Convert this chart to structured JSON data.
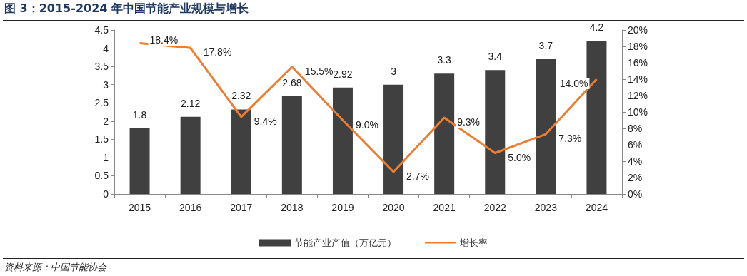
{
  "chart_data": {
    "type": "bar",
    "title": "图 3：2015-2024 年中国节能产业规模与增长",
    "annotations": [
      "资料来源：中国节能协会"
    ],
    "categories": [
      "2015",
      "2016",
      "2017",
      "2018",
      "2019",
      "2020",
      "2021",
      "2022",
      "2023",
      "2024"
    ],
    "series": [
      {
        "name": "节能产业产值（万亿元）",
        "color": "#404040",
        "values": [
          1.8,
          2.12,
          2.32,
          2.68,
          2.92,
          3,
          3.3,
          3.4,
          3.7,
          4.2
        ],
        "data_labels": true
      },
      {
        "name": "增长率",
        "type": "line",
        "axis": "y2",
        "color": "#ed7d31",
        "values": [
          18.4,
          17.8,
          9.4,
          15.5,
          9.0,
          2.7,
          9.3,
          5.0,
          7.3,
          14.0
        ],
        "value_labels": [
          "18.4%",
          "17.8%",
          "9.4%",
          "15.5%",
          "9.0%",
          "2.7%",
          "9.3%",
          "5.0%",
          "7.3%",
          "14.0%"
        ]
      }
    ],
    "ylim": [
      0,
      4.5
    ],
    "yticks": [
      0,
      0.5,
      1,
      1.5,
      2,
      2.5,
      3,
      3.5,
      4,
      4.5
    ],
    "y2lim": [
      0,
      20
    ],
    "y2ticks": [
      {
        "value": 0,
        "label": "0%"
      },
      {
        "value": 2,
        "label": "2%"
      },
      {
        "value": 4,
        "label": "4%"
      },
      {
        "value": 6,
        "label": "6%"
      },
      {
        "value": 8,
        "label": "8%"
      },
      {
        "value": 10,
        "label": "10%"
      },
      {
        "value": 12,
        "label": "12%"
      },
      {
        "value": 14,
        "label": "14%"
      },
      {
        "value": 16,
        "label": "16%"
      },
      {
        "value": 18,
        "label": "18%"
      },
      {
        "value": 20,
        "label": "20%"
      }
    ],
    "grid": false,
    "legend": "bottom",
    "marker": "none",
    "line_style": "solid"
  }
}
